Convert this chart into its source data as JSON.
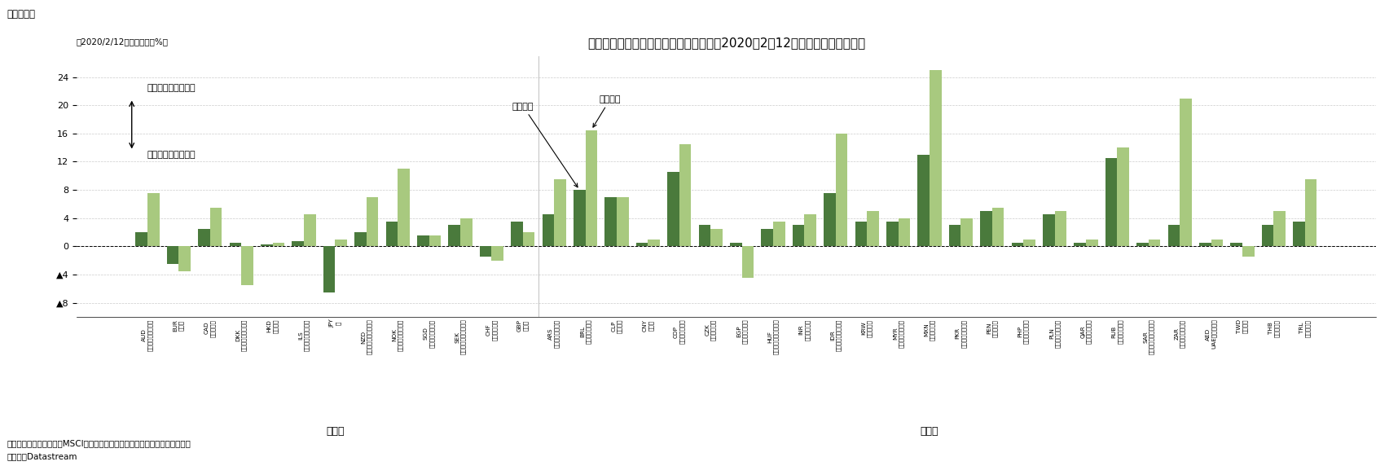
{
  "title": "各国・地域の対ドル為替レート変動率（2020年2月12日と比較した騰落率）",
  "subtitle_fig": "（図表５）",
  "ylabel": "（2020/2/12対比変動率、%）",
  "note1": "（注）先進国・新興国はMSCIの分類に沿って分類。ユーロは先進国とした。",
  "note2": "（資料）Datastream",
  "annotation_39": "３月９日",
  "annotation_49": "４月９日",
  "label_advanced": "先進国",
  "label_emerging": "新興国",
  "label_up": "ドル高・自国通貨安",
  "label_down": "ドル安・自国通貨高",
  "ylim_min": -10,
  "ylim_max": 27,
  "yticks": [
    -8,
    -4,
    0,
    4,
    8,
    12,
    16,
    20,
    24
  ],
  "color_march": "#4a7a3c",
  "color_april": "#a8c97f",
  "categories": [
    "AUD\nオーストラリアドル",
    "EUR\nユーロ",
    "CAD\nカナダドル",
    "DKK\nデンマーククローネ",
    "HKD\n香港ドル",
    "ILS\nイスラエルシェケル",
    "JPY\n円",
    "NZD\nニュージーランドドル",
    "NOK\nノルウェークローネ",
    "SGD\nシンガポールドル",
    "SEK\nスウェーデンクローナ",
    "CHF\nスイスフラン",
    "GBP\nポンド",
    "ARS\nアルゼンチンペソ",
    "BRL\nブラジルレアル",
    "CLP\nチリペソ",
    "CNY\n人民元",
    "COP\nコロンビアペソ",
    "CZK\nチェココルナ",
    "EGP\nエジプトポンド",
    "HUF\nハンガリーフォリント",
    "INR\nインドルピー",
    "IDR\nインドネシアルピア",
    "KRW\n韓国ウォン",
    "MYR\nマレーシアリンギ",
    "MXN\nメキシコペソ",
    "PKR\nパキスタンルピー",
    "PEN\nペルーソル",
    "PHP\nフィリピンペソ",
    "PLN\nポーランドズロチ",
    "QAR\nカタールリヤル",
    "RUB\nロシアルーブル",
    "SAR\nサウジアラビアリヤル",
    "ZAR\n南アフリカランド",
    "AED\nUAEディルハム",
    "TWD\n台湾ドル",
    "THB\nタイバーツ",
    "TRL\nトルコリラ"
  ],
  "march_values": [
    2.0,
    -2.5,
    2.5,
    0.5,
    0.3,
    0.7,
    -6.5,
    2.0,
    3.5,
    1.5,
    3.0,
    -1.5,
    3.5,
    4.5,
    8.0,
    7.0,
    0.5,
    10.5,
    3.0,
    0.5,
    2.5,
    3.0,
    7.5,
    3.5,
    3.5,
    13.0,
    3.0,
    5.0,
    0.5,
    4.5,
    0.5,
    12.5,
    0.5,
    3.0,
    0.5,
    0.5,
    3.0,
    3.5
  ],
  "april_values": [
    7.5,
    -3.5,
    5.5,
    -5.5,
    0.5,
    4.5,
    1.0,
    7.0,
    11.0,
    1.5,
    4.0,
    -2.0,
    2.0,
    9.5,
    16.5,
    7.0,
    1.0,
    14.5,
    2.5,
    -4.5,
    3.5,
    4.5,
    16.0,
    5.0,
    4.0,
    25.0,
    4.0,
    5.5,
    1.0,
    5.0,
    1.0,
    14.0,
    1.0,
    21.0,
    1.0,
    -1.5,
    5.0,
    9.5
  ],
  "advanced_count": 13,
  "background_color": "#ffffff"
}
